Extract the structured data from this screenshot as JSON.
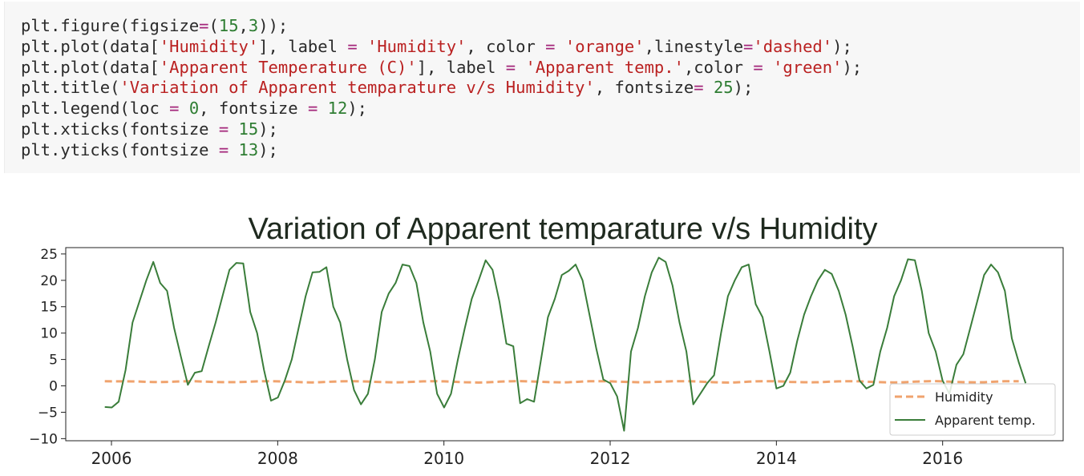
{
  "code_cell": {
    "lines": [
      [
        [
          "plain",
          "plt.figure(figsize"
        ],
        [
          "op",
          "="
        ],
        [
          "plain",
          "("
        ],
        [
          "num",
          "15"
        ],
        [
          "plain",
          ","
        ],
        [
          "num",
          "3"
        ],
        [
          "plain",
          "));"
        ]
      ],
      [
        [
          "plain",
          "plt.plot(data["
        ],
        [
          "str",
          "'Humidity'"
        ],
        [
          "plain",
          "], label "
        ],
        [
          "op",
          "="
        ],
        [
          "plain",
          " "
        ],
        [
          "str",
          "'Humidity'"
        ],
        [
          "plain",
          ", color "
        ],
        [
          "op",
          "="
        ],
        [
          "plain",
          " "
        ],
        [
          "str",
          "'orange'"
        ],
        [
          "plain",
          ",linestyle"
        ],
        [
          "op",
          "="
        ],
        [
          "str",
          "'dashed'"
        ],
        [
          "plain",
          ");"
        ]
      ],
      [
        [
          "plain",
          "plt.plot(data["
        ],
        [
          "str",
          "'Apparent Temperature (C)'"
        ],
        [
          "plain",
          "], label "
        ],
        [
          "op",
          "="
        ],
        [
          "plain",
          " "
        ],
        [
          "str",
          "'Apparent temp.'"
        ],
        [
          "plain",
          ",color "
        ],
        [
          "op",
          "="
        ],
        [
          "plain",
          " "
        ],
        [
          "str",
          "'green'"
        ],
        [
          "plain",
          ");"
        ]
      ],
      [
        [
          "plain",
          "plt.title("
        ],
        [
          "str",
          "'Variation of Apparent temparature v/s Humidity'"
        ],
        [
          "plain",
          ", fontsize"
        ],
        [
          "op",
          "="
        ],
        [
          "plain",
          " "
        ],
        [
          "num",
          "25"
        ],
        [
          "plain",
          ");"
        ]
      ],
      [
        [
          "plain",
          "plt.legend(loc "
        ],
        [
          "op",
          "="
        ],
        [
          "plain",
          " "
        ],
        [
          "num",
          "0"
        ],
        [
          "plain",
          ", fontsize "
        ],
        [
          "op",
          "="
        ],
        [
          "plain",
          " "
        ],
        [
          "num",
          "12"
        ],
        [
          "plain",
          ");"
        ]
      ],
      [
        [
          "plain",
          "plt.xticks(fontsize "
        ],
        [
          "op",
          "="
        ],
        [
          "plain",
          " "
        ],
        [
          "num",
          "15"
        ],
        [
          "plain",
          ");"
        ]
      ],
      [
        [
          "plain",
          "plt.yticks(fontsize "
        ],
        [
          "op",
          "="
        ],
        [
          "plain",
          " "
        ],
        [
          "num",
          "13"
        ],
        [
          "plain",
          ");"
        ]
      ]
    ]
  },
  "chart_data": {
    "type": "line",
    "title": "Variation of Apparent temparature v/s Humidity",
    "xlabel": "",
    "ylabel": "",
    "xlim": [
      2005.45,
      2017.45
    ],
    "ylim": [
      -10.4,
      26.2
    ],
    "x_ticks": [
      2006,
      2008,
      2010,
      2012,
      2014,
      2016
    ],
    "x_tick_labels": [
      "2006",
      "2008",
      "2010",
      "2012",
      "2014",
      "2016"
    ],
    "y_ticks": [
      25,
      20,
      15,
      10,
      5,
      0,
      -5,
      -10
    ],
    "y_tick_labels": [
      "25",
      "20",
      "15",
      "10",
      "5",
      "0",
      "−5",
      "−10"
    ],
    "grid": false,
    "legend": "lower right",
    "x_start": 2005.92,
    "x_step": 0.0833,
    "series": [
      {
        "name": "Humidity",
        "color": "#f0a36e",
        "style": "dashed",
        "values": [
          0.89,
          0.86,
          0.86,
          0.86,
          0.84,
          0.82,
          0.74,
          0.73,
          0.72,
          0.75,
          0.79,
          0.85,
          0.88,
          0.87,
          0.83,
          0.78,
          0.73,
          0.7,
          0.7,
          0.71,
          0.74,
          0.8,
          0.85,
          0.88,
          0.88,
          0.86,
          0.83,
          0.77,
          0.72,
          0.67,
          0.65,
          0.68,
          0.74,
          0.81,
          0.86,
          0.89,
          0.89,
          0.86,
          0.82,
          0.76,
          0.71,
          0.68,
          0.66,
          0.68,
          0.74,
          0.8,
          0.86,
          0.89,
          0.89,
          0.86,
          0.81,
          0.75,
          0.69,
          0.65,
          0.62,
          0.65,
          0.71,
          0.8,
          0.86,
          0.88,
          0.9,
          0.86,
          0.82,
          0.76,
          0.72,
          0.68,
          0.66,
          0.68,
          0.74,
          0.82,
          0.87,
          0.89,
          0.89,
          0.85,
          0.81,
          0.76,
          0.73,
          0.69,
          0.68,
          0.71,
          0.76,
          0.82,
          0.87,
          0.89,
          0.88,
          0.85,
          0.8,
          0.74,
          0.69,
          0.64,
          0.62,
          0.65,
          0.72,
          0.8,
          0.86,
          0.89,
          0.89,
          0.87,
          0.82,
          0.75,
          0.71,
          0.68,
          0.67,
          0.69,
          0.75,
          0.81,
          0.86,
          0.88,
          0.88,
          0.85,
          0.8,
          0.74,
          0.7,
          0.67,
          0.65,
          0.67,
          0.73,
          0.8,
          0.86,
          0.89,
          0.9,
          0.85,
          0.8,
          0.74,
          0.7,
          0.68,
          0.67,
          0.69,
          0.76,
          0.82,
          0.87,
          0.89,
          0.89
        ]
      },
      {
        "name": "Apparent temp.",
        "color": "#3a7d3a",
        "style": "solid",
        "values": [
          -4.0,
          -4.1,
          -3.0,
          3.0,
          12.0,
          16.0,
          20.0,
          23.5,
          19.5,
          18.0,
          11.0,
          5.5,
          0.2,
          2.5,
          2.8,
          7.5,
          12.0,
          17.0,
          22.0,
          23.3,
          23.2,
          14.0,
          10.0,
          3.0,
          -2.8,
          -2.2,
          1.0,
          5.0,
          11.0,
          17.0,
          21.5,
          21.6,
          22.5,
          15.0,
          12.0,
          5.0,
          -0.8,
          -3.5,
          -1.5,
          5.0,
          14.0,
          17.5,
          19.5,
          23.0,
          22.7,
          19.5,
          12.0,
          6.5,
          -1.5,
          -4.1,
          -1.5,
          5.0,
          11.0,
          16.5,
          20.0,
          23.8,
          22.0,
          16.0,
          8.0,
          7.5,
          -3.3,
          -2.5,
          -3.0,
          5.0,
          13.0,
          16.5,
          21.0,
          21.8,
          23.0,
          20.0,
          13.5,
          7.0,
          1.2,
          0.5,
          -2.0,
          -8.5,
          6.5,
          11.0,
          17.0,
          21.5,
          24.3,
          23.5,
          19.0,
          12.0,
          6.5,
          -3.5,
          -1.5,
          0.5,
          2.0,
          10.0,
          17.0,
          20.0,
          22.5,
          23.0,
          15.5,
          13.0,
          6.5,
          -0.5,
          0.0,
          2.5,
          8.5,
          13.5,
          17.0,
          20.0,
          22.0,
          21.2,
          18.0,
          13.5,
          7.5,
          1.0,
          -0.5,
          0.2,
          6.5,
          11.0,
          17.0,
          20.0,
          24.0,
          23.8,
          18.0,
          10.0,
          6.5,
          1.0,
          -1.5,
          4.0,
          6.0,
          11.0,
          16.0,
          21.0,
          23.0,
          21.5,
          18.0,
          9.0,
          4.5,
          0.5
        ]
      }
    ]
  }
}
